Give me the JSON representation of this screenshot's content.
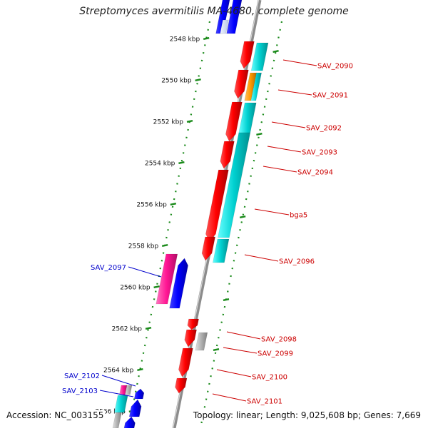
{
  "title": "Streptomyces avermitilis MA-4680, complete genome",
  "footer": {
    "accession": "Accession: NC_003155",
    "summary": "Topology: linear; Length: 9,025,608 bp; Genes: 7,669"
  },
  "colors": {
    "forward_gene": "#0000ff",
    "reverse_gene": "#ff0000",
    "cds_feature": "#00cccc",
    "highlight_feature": "#ff1493",
    "orange_feature": "#ff9900",
    "gray_feature": "#aaaaaa",
    "tick": "#1a8a1a",
    "label_right": "#cc0000",
    "label_left": "#0000cc",
    "backbone": "#8c8c8c"
  },
  "ticks": [
    {
      "label": "2548 kbp"
    },
    {
      "label": "2550 kbp"
    },
    {
      "label": "2552 kbp"
    },
    {
      "label": "2554 kbp"
    },
    {
      "label": "2556 kbp"
    },
    {
      "label": "2558 kbp"
    },
    {
      "label": "2560 kbp"
    },
    {
      "label": "2562 kbp"
    },
    {
      "label": "2564 kbp"
    },
    {
      "label": "2566 kbp"
    }
  ],
  "gene_labels_right": [
    "SAV_2090",
    "SAV_2091",
    "SAV_2092",
    "SAV_2093",
    "SAV_2094",
    "bga5",
    "SAV_2096",
    "SAV_2098",
    "SAV_2099",
    "SAV_2100",
    "SAV_2101"
  ],
  "gene_labels_left": [
    "SAV_2097",
    "SAV_2102",
    "SAV_2103"
  ]
}
